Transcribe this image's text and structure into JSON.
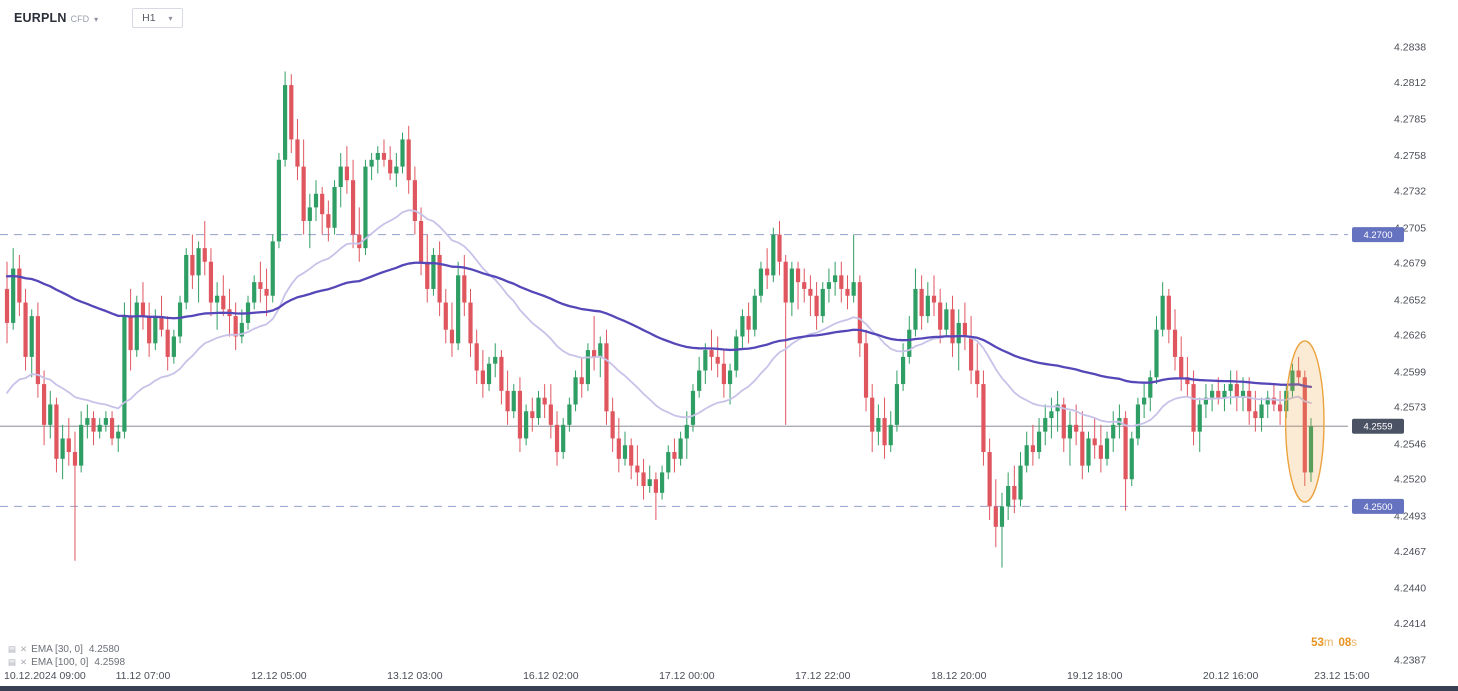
{
  "header": {
    "symbol": "EURPLN",
    "instrument_type": "CFD",
    "timeframe": "H1"
  },
  "icons": {
    "chevron": "▾",
    "settings": "▤",
    "close": "✕"
  },
  "levels": {
    "upper": {
      "label": "4.2700",
      "price": 4.27
    },
    "lower": {
      "label": "4.2500",
      "price": 4.25
    },
    "current": {
      "label": "4.2559",
      "price": 4.2559
    }
  },
  "countdown": {
    "minutes": "53",
    "minutes_unit": "m",
    "seconds": "08",
    "seconds_unit": "s"
  },
  "indicators": [
    {
      "label": "EMA [30, 0]",
      "value": "4.2580",
      "period": 30,
      "seed": 4.258,
      "color": "#c7c2e8",
      "width": 1.8
    },
    {
      "label": "EMA [100, 0]",
      "value": "4.2598",
      "period": 100,
      "seed": 4.267,
      "color": "#5547b8",
      "width": 2.3
    }
  ],
  "chart_data": {
    "type": "candlestick",
    "symbol": "EURPLN CFD",
    "timeframe": "H1",
    "colors": {
      "up": "#2f9e64",
      "down": "#e0565f",
      "level_line": "#93a0cc",
      "level_badge": "#6472bf",
      "current_badge": "#4b5263",
      "current_line": "#787d87",
      "axis_text": "#4b4f57",
      "highlight": "#eca23f"
    },
    "price_axis": {
      "min": 4.2387,
      "max": 4.2838,
      "ticks": [
        "4.2838",
        "4.2812",
        "4.2785",
        "4.2758",
        "4.2732",
        "4.2705",
        "4.2679",
        "4.2652",
        "4.2626",
        "4.2599",
        "4.2573",
        "4.2546",
        "4.2520",
        "4.2493",
        "4.2467",
        "4.2440",
        "4.2414",
        "4.2387"
      ]
    },
    "time_axis": {
      "labels": [
        {
          "text": "10.12.2024  09:00",
          "index": 0
        },
        {
          "text": "11.12 07:00",
          "index": 22
        },
        {
          "text": "12.12 05:00",
          "index": 44
        },
        {
          "text": "13.12 03:00",
          "index": 66
        },
        {
          "text": "16.12 02:00",
          "index": 88
        },
        {
          "text": "17.12 00:00",
          "index": 110
        },
        {
          "text": "17.12 22:00",
          "index": 132
        },
        {
          "text": "18.12 20:00",
          "index": 154
        },
        {
          "text": "19.12 18:00",
          "index": 176
        },
        {
          "text": "20.12 16:00",
          "index": 198
        },
        {
          "text": "23.12 15:00",
          "index": 216
        }
      ]
    },
    "highlight": {
      "from": 209,
      "to": 211
    },
    "candles": [
      [
        4.266,
        4.268,
        4.262,
        4.2635
      ],
      [
        4.2635,
        4.269,
        4.263,
        4.2675
      ],
      [
        4.2675,
        4.2685,
        4.264,
        4.265
      ],
      [
        4.265,
        4.266,
        4.26,
        4.261
      ],
      [
        4.261,
        4.2645,
        4.2595,
        4.264
      ],
      [
        4.264,
        4.265,
        4.258,
        4.259
      ],
      [
        4.259,
        4.26,
        4.2545,
        4.256
      ],
      [
        4.256,
        4.2585,
        4.255,
        4.2575
      ],
      [
        4.2575,
        4.258,
        4.2525,
        4.2535
      ],
      [
        4.2535,
        4.256,
        4.252,
        4.255
      ],
      [
        4.255,
        4.2565,
        4.253,
        4.254
      ],
      [
        4.254,
        4.2555,
        4.246,
        4.253
      ],
      [
        4.253,
        4.257,
        4.2525,
        4.256
      ],
      [
        4.256,
        4.2575,
        4.255,
        4.2565
      ],
      [
        4.2565,
        4.257,
        4.2545,
        4.2555
      ],
      [
        4.2555,
        4.2565,
        4.255,
        4.256
      ],
      [
        4.256,
        4.257,
        4.2555,
        4.2565
      ],
      [
        4.2565,
        4.257,
        4.2545,
        4.255
      ],
      [
        4.255,
        4.256,
        4.254,
        4.2555
      ],
      [
        4.2555,
        4.265,
        4.255,
        4.264
      ],
      [
        4.264,
        4.266,
        4.26,
        4.2615
      ],
      [
        4.2615,
        4.2655,
        4.261,
        4.265
      ],
      [
        4.265,
        4.2665,
        4.263,
        4.264
      ],
      [
        4.264,
        4.265,
        4.261,
        4.262
      ],
      [
        4.262,
        4.2645,
        4.2615,
        4.264
      ],
      [
        4.264,
        4.2655,
        4.2625,
        4.263
      ],
      [
        4.263,
        4.264,
        4.26,
        4.261
      ],
      [
        4.261,
        4.263,
        4.2605,
        4.2625
      ],
      [
        4.2625,
        4.2655,
        4.262,
        4.265
      ],
      [
        4.265,
        4.269,
        4.2645,
        4.2685
      ],
      [
        4.2685,
        4.27,
        4.266,
        4.267
      ],
      [
        4.267,
        4.2695,
        4.265,
        4.269
      ],
      [
        4.269,
        4.271,
        4.267,
        4.268
      ],
      [
        4.268,
        4.269,
        4.264,
        4.265
      ],
      [
        4.265,
        4.2665,
        4.263,
        4.2655
      ],
      [
        4.2655,
        4.267,
        4.264,
        4.2645
      ],
      [
        4.2645,
        4.266,
        4.2625,
        4.264
      ],
      [
        4.264,
        4.265,
        4.2615,
        4.2625
      ],
      [
        4.2625,
        4.2645,
        4.262,
        4.2635
      ],
      [
        4.2635,
        4.2655,
        4.263,
        4.265
      ],
      [
        4.265,
        4.267,
        4.2645,
        4.2665
      ],
      [
        4.2665,
        4.268,
        4.265,
        4.266
      ],
      [
        4.266,
        4.2675,
        4.264,
        4.2655
      ],
      [
        4.2655,
        4.27,
        4.265,
        4.2695
      ],
      [
        4.2695,
        4.276,
        4.269,
        4.2755
      ],
      [
        4.2755,
        4.282,
        4.275,
        4.281
      ],
      [
        4.281,
        4.2818,
        4.276,
        4.277
      ],
      [
        4.277,
        4.2785,
        4.274,
        4.275
      ],
      [
        4.275,
        4.277,
        4.27,
        4.271
      ],
      [
        4.271,
        4.273,
        4.269,
        4.272
      ],
      [
        4.272,
        4.274,
        4.271,
        4.273
      ],
      [
        4.273,
        4.2735,
        4.27,
        4.2715
      ],
      [
        4.2715,
        4.2725,
        4.2695,
        4.2705
      ],
      [
        4.2705,
        4.274,
        4.27,
        4.2735
      ],
      [
        4.2735,
        4.276,
        4.272,
        4.275
      ],
      [
        4.275,
        4.2765,
        4.273,
        4.274
      ],
      [
        4.274,
        4.2755,
        4.269,
        4.27
      ],
      [
        4.27,
        4.272,
        4.268,
        4.269
      ],
      [
        4.269,
        4.2755,
        4.2685,
        4.275
      ],
      [
        4.275,
        4.276,
        4.274,
        4.2755
      ],
      [
        4.2755,
        4.2765,
        4.2745,
        4.276
      ],
      [
        4.276,
        4.277,
        4.275,
        4.2755
      ],
      [
        4.2755,
        4.2765,
        4.274,
        4.2745
      ],
      [
        4.2745,
        4.276,
        4.2735,
        4.275
      ],
      [
        4.275,
        4.2775,
        4.2745,
        4.277
      ],
      [
        4.277,
        4.278,
        4.273,
        4.274
      ],
      [
        4.274,
        4.275,
        4.27,
        4.271
      ],
      [
        4.271,
        4.272,
        4.267,
        4.268
      ],
      [
        4.268,
        4.27,
        4.265,
        4.266
      ],
      [
        4.266,
        4.269,
        4.2655,
        4.2685
      ],
      [
        4.2685,
        4.2695,
        4.264,
        4.265
      ],
      [
        4.265,
        4.266,
        4.262,
        4.263
      ],
      [
        4.263,
        4.265,
        4.261,
        4.262
      ],
      [
        4.262,
        4.268,
        4.2615,
        4.267
      ],
      [
        4.267,
        4.2685,
        4.264,
        4.265
      ],
      [
        4.265,
        4.266,
        4.261,
        4.262
      ],
      [
        4.262,
        4.263,
        4.259,
        4.26
      ],
      [
        4.26,
        4.2615,
        4.258,
        4.259
      ],
      [
        4.259,
        4.261,
        4.2585,
        4.2605
      ],
      [
        4.2605,
        4.262,
        4.2595,
        4.261
      ],
      [
        4.261,
        4.2615,
        4.2575,
        4.2585
      ],
      [
        4.2585,
        4.26,
        4.256,
        4.257
      ],
      [
        4.257,
        4.259,
        4.2565,
        4.2585
      ],
      [
        4.2585,
        4.2595,
        4.254,
        4.255
      ],
      [
        4.255,
        4.2575,
        4.2545,
        4.257
      ],
      [
        4.257,
        4.258,
        4.2555,
        4.2565
      ],
      [
        4.2565,
        4.2585,
        4.256,
        4.258
      ],
      [
        4.258,
        4.259,
        4.2565,
        4.2575
      ],
      [
        4.2575,
        4.259,
        4.255,
        4.256
      ],
      [
        4.256,
        4.257,
        4.253,
        4.254
      ],
      [
        4.254,
        4.2565,
        4.2535,
        4.256
      ],
      [
        4.256,
        4.258,
        4.2555,
        4.2575
      ],
      [
        4.2575,
        4.26,
        4.257,
        4.2595
      ],
      [
        4.2595,
        4.261,
        4.258,
        4.259
      ],
      [
        4.259,
        4.262,
        4.2585,
        4.2615
      ],
      [
        4.2615,
        4.264,
        4.26,
        4.261
      ],
      [
        4.261,
        4.2625,
        4.2595,
        4.262
      ],
      [
        4.262,
        4.263,
        4.256,
        4.257
      ],
      [
        4.257,
        4.258,
        4.254,
        4.255
      ],
      [
        4.255,
        4.2565,
        4.2525,
        4.2535
      ],
      [
        4.2535,
        4.2555,
        4.253,
        4.2545
      ],
      [
        4.2545,
        4.255,
        4.252,
        4.253
      ],
      [
        4.253,
        4.2545,
        4.2515,
        4.2525
      ],
      [
        4.2525,
        4.2535,
        4.2505,
        4.2515
      ],
      [
        4.2515,
        4.253,
        4.251,
        4.252
      ],
      [
        4.252,
        4.2525,
        4.249,
        4.251
      ],
      [
        4.251,
        4.253,
        4.2505,
        4.2525
      ],
      [
        4.2525,
        4.2545,
        4.252,
        4.254
      ],
      [
        4.254,
        4.255,
        4.2525,
        4.2535
      ],
      [
        4.2535,
        4.2555,
        4.253,
        4.255
      ],
      [
        4.255,
        4.257,
        4.2535,
        4.256
      ],
      [
        4.256,
        4.259,
        4.2555,
        4.2585
      ],
      [
        4.2585,
        4.261,
        4.258,
        4.26
      ],
      [
        4.26,
        4.262,
        4.259,
        4.2615
      ],
      [
        4.2615,
        4.263,
        4.26,
        4.261
      ],
      [
        4.261,
        4.2625,
        4.2595,
        4.2605
      ],
      [
        4.2605,
        4.2615,
        4.258,
        4.259
      ],
      [
        4.259,
        4.2605,
        4.2575,
        4.26
      ],
      [
        4.26,
        4.263,
        4.2595,
        4.2625
      ],
      [
        4.2625,
        4.2645,
        4.2615,
        4.264
      ],
      [
        4.264,
        4.265,
        4.262,
        4.263
      ],
      [
        4.263,
        4.266,
        4.2625,
        4.2655
      ],
      [
        4.2655,
        4.268,
        4.265,
        4.2675
      ],
      [
        4.2675,
        4.269,
        4.266,
        4.267
      ],
      [
        4.267,
        4.2705,
        4.2665,
        4.27
      ],
      [
        4.27,
        4.271,
        4.267,
        4.268
      ],
      [
        4.268,
        4.2685,
        4.256,
        4.265
      ],
      [
        4.265,
        4.268,
        4.264,
        4.2675
      ],
      [
        4.2675,
        4.268,
        4.2645,
        4.2665
      ],
      [
        4.2665,
        4.2675,
        4.265,
        4.266
      ],
      [
        4.266,
        4.267,
        4.264,
        4.2655
      ],
      [
        4.2655,
        4.2665,
        4.263,
        4.264
      ],
      [
        4.264,
        4.2665,
        4.2635,
        4.266
      ],
      [
        4.266,
        4.2675,
        4.265,
        4.2665
      ],
      [
        4.2665,
        4.268,
        4.2655,
        4.267
      ],
      [
        4.267,
        4.268,
        4.265,
        4.266
      ],
      [
        4.266,
        4.267,
        4.2645,
        4.2655
      ],
      [
        4.2655,
        4.27,
        4.265,
        4.2665
      ],
      [
        4.2665,
        4.267,
        4.261,
        4.262
      ],
      [
        4.262,
        4.263,
        4.257,
        4.258
      ],
      [
        4.258,
        4.259,
        4.254,
        4.2555
      ],
      [
        4.2555,
        4.2575,
        4.2545,
        4.2565
      ],
      [
        4.2565,
        4.258,
        4.2535,
        4.2545
      ],
      [
        4.2545,
        4.257,
        4.254,
        4.256
      ],
      [
        4.256,
        4.26,
        4.2555,
        4.259
      ],
      [
        4.259,
        4.262,
        4.2585,
        4.261
      ],
      [
        4.261,
        4.264,
        4.2605,
        4.263
      ],
      [
        4.263,
        4.2675,
        4.2625,
        4.266
      ],
      [
        4.266,
        4.267,
        4.263,
        4.264
      ],
      [
        4.264,
        4.2665,
        4.2635,
        4.2655
      ],
      [
        4.2655,
        4.267,
        4.264,
        4.265
      ],
      [
        4.265,
        4.266,
        4.262,
        4.263
      ],
      [
        4.263,
        4.265,
        4.2625,
        4.2645
      ],
      [
        4.2645,
        4.2655,
        4.261,
        4.262
      ],
      [
        4.262,
        4.2645,
        4.26,
        4.2635
      ],
      [
        4.2635,
        4.265,
        4.2615,
        4.2625
      ],
      [
        4.2625,
        4.264,
        4.259,
        4.26
      ],
      [
        4.26,
        4.262,
        4.258,
        4.259
      ],
      [
        4.259,
        4.26,
        4.253,
        4.254
      ],
      [
        4.254,
        4.255,
        4.249,
        4.25
      ],
      [
        4.25,
        4.252,
        4.247,
        4.2485
      ],
      [
        4.2485,
        4.251,
        4.2455,
        4.25
      ],
      [
        4.25,
        4.2525,
        4.249,
        4.2515
      ],
      [
        4.2515,
        4.253,
        4.2495,
        4.2505
      ],
      [
        4.2505,
        4.254,
        4.25,
        4.253
      ],
      [
        4.253,
        4.2555,
        4.2525,
        4.2545
      ],
      [
        4.2545,
        4.256,
        4.253,
        4.254
      ],
      [
        4.254,
        4.2565,
        4.2535,
        4.2555
      ],
      [
        4.2555,
        4.2575,
        4.2545,
        4.2565
      ],
      [
        4.2565,
        4.258,
        4.255,
        4.257
      ],
      [
        4.257,
        4.2585,
        4.2555,
        4.2575
      ],
      [
        4.2575,
        4.258,
        4.254,
        4.255
      ],
      [
        4.255,
        4.257,
        4.253,
        4.256
      ],
      [
        4.256,
        4.2575,
        4.2545,
        4.2555
      ],
      [
        4.2555,
        4.257,
        4.252,
        4.253
      ],
      [
        4.253,
        4.2555,
        4.2525,
        4.255
      ],
      [
        4.255,
        4.2565,
        4.2535,
        4.2545
      ],
      [
        4.2545,
        4.256,
        4.2525,
        4.2535
      ],
      [
        4.2535,
        4.2555,
        4.253,
        4.255
      ],
      [
        4.255,
        4.257,
        4.254,
        4.256
      ],
      [
        4.256,
        4.2575,
        4.255,
        4.2565
      ],
      [
        4.2565,
        4.257,
        4.2497,
        4.252
      ],
      [
        4.252,
        4.2555,
        4.2515,
        4.255
      ],
      [
        4.255,
        4.258,
        4.2545,
        4.2575
      ],
      [
        4.2575,
        4.259,
        4.2565,
        4.258
      ],
      [
        4.258,
        4.26,
        4.257,
        4.2595
      ],
      [
        4.2595,
        4.264,
        4.259,
        4.263
      ],
      [
        4.263,
        4.2665,
        4.2625,
        4.2655
      ],
      [
        4.2655,
        4.266,
        4.262,
        4.263
      ],
      [
        4.263,
        4.2645,
        4.26,
        4.261
      ],
      [
        4.261,
        4.2625,
        4.2585,
        4.2595
      ],
      [
        4.2595,
        4.261,
        4.258,
        4.259
      ],
      [
        4.259,
        4.26,
        4.2545,
        4.2555
      ],
      [
        4.2555,
        4.258,
        4.254,
        4.2575
      ],
      [
        4.2575,
        4.259,
        4.2565,
        4.258
      ],
      [
        4.258,
        4.259,
        4.257,
        4.2585
      ],
      [
        4.2585,
        4.2595,
        4.2575,
        4.258
      ],
      [
        4.258,
        4.259,
        4.257,
        4.2585
      ],
      [
        4.2585,
        4.26,
        4.2575,
        4.259
      ],
      [
        4.259,
        4.26,
        4.257,
        4.258
      ],
      [
        4.258,
        4.2595,
        4.257,
        4.2585
      ],
      [
        4.2585,
        4.2595,
        4.256,
        4.257
      ],
      [
        4.257,
        4.2585,
        4.2555,
        4.2565
      ],
      [
        4.2565,
        4.258,
        4.2555,
        4.2575
      ],
      [
        4.2575,
        4.2585,
        4.2565,
        4.258
      ],
      [
        4.258,
        4.259,
        4.257,
        4.2575
      ],
      [
        4.2575,
        4.2585,
        4.256,
        4.257
      ],
      [
        4.257,
        4.259,
        4.2565,
        4.2585
      ],
      [
        4.2585,
        4.2605,
        4.258,
        4.26
      ],
      [
        4.26,
        4.261,
        4.259,
        4.2595
      ],
      [
        4.2595,
        4.26,
        4.2515,
        4.2525
      ],
      [
        4.2525,
        4.2565,
        4.2518,
        4.2559
      ]
    ]
  }
}
